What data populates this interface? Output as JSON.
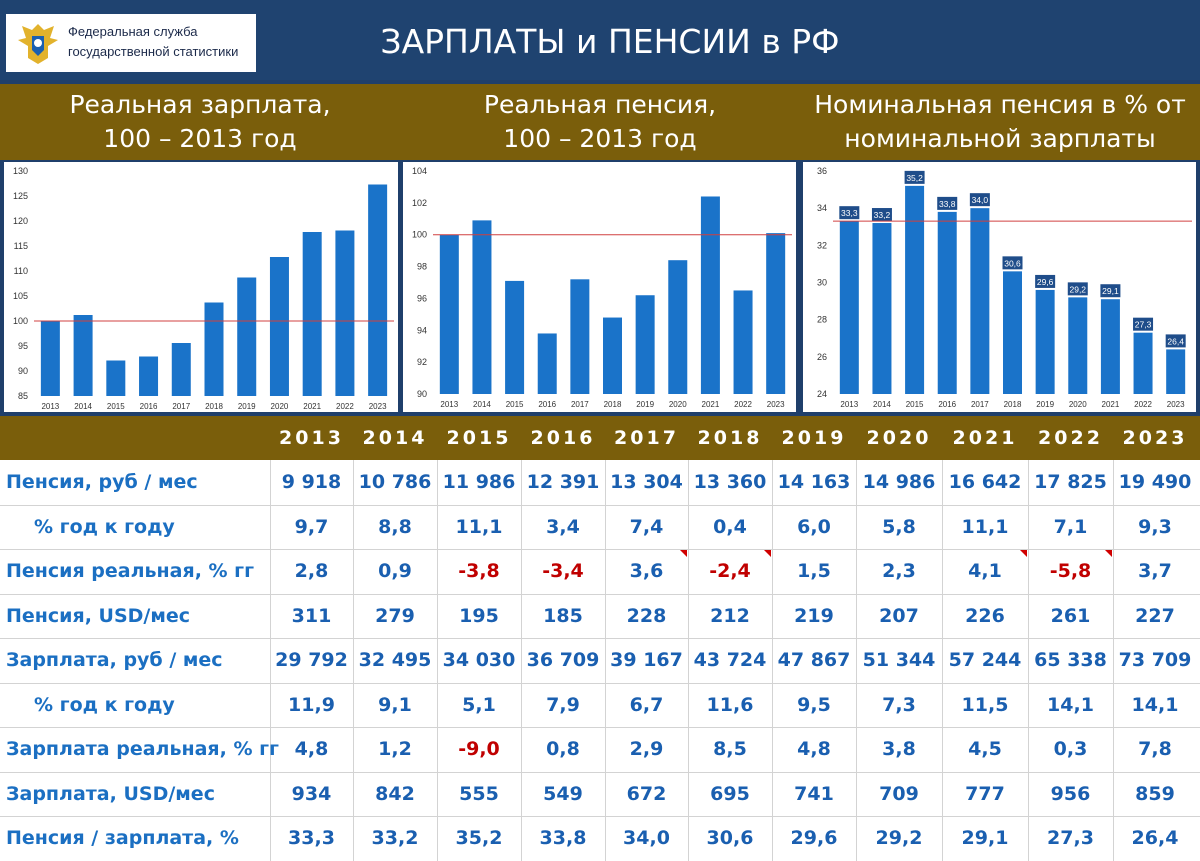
{
  "header": {
    "logo_line1": "Федеральная служба",
    "logo_line2": "государственной статистики",
    "title": "ЗАРПЛАТЫ и ПЕНСИИ в РФ"
  },
  "colors": {
    "bar": "#1a73c9",
    "header_bg": "#1f4370",
    "band_bg": "#7a5e0b",
    "negative": "#c00000",
    "row_text": "#1b6fc2"
  },
  "panel_titles": [
    {
      "line1": "Реальная зарплата,",
      "line2": "100 – 2013 год"
    },
    {
      "line1": "Реальная пенсия,",
      "line2": "100 – 2013 год"
    },
    {
      "line1": "Номинальная пенсия в % от",
      "line2": "номинальной зарплаты"
    }
  ],
  "chart_data": [
    {
      "type": "bar",
      "categories": [
        "2013",
        "2014",
        "2015",
        "2016",
        "2017",
        "2018",
        "2019",
        "2020",
        "2021",
        "2022",
        "2023"
      ],
      "values": [
        100,
        101.2,
        92.1,
        92.9,
        95.6,
        103.7,
        108.7,
        112.8,
        117.8,
        118.1,
        127.3
      ],
      "yticks": [
        85,
        90,
        95,
        100,
        105,
        110,
        115,
        120,
        125,
        130
      ],
      "ylim": [
        85,
        130
      ],
      "reference": 100,
      "grid": false
    },
    {
      "type": "bar",
      "categories": [
        "2013",
        "2014",
        "2015",
        "2016",
        "2017",
        "2018",
        "2019",
        "2020",
        "2021",
        "2022",
        "2023"
      ],
      "values": [
        100,
        100.9,
        97.1,
        93.8,
        97.2,
        94.8,
        96.2,
        98.4,
        102.4,
        96.5,
        100.1
      ],
      "yticks": [
        90,
        92,
        94,
        96,
        98,
        100,
        102,
        104
      ],
      "ylim": [
        90,
        104
      ],
      "reference": 100,
      "grid": false
    },
    {
      "type": "bar",
      "categories": [
        "2013",
        "2014",
        "2015",
        "2016",
        "2017",
        "2018",
        "2019",
        "2020",
        "2021",
        "2022",
        "2023"
      ],
      "values": [
        33.3,
        33.2,
        35.2,
        33.8,
        34.0,
        30.6,
        29.6,
        29.2,
        29.1,
        27.3,
        26.4
      ],
      "labels": [
        "33,3",
        "33,2",
        "35,2",
        "33,8",
        "34,0",
        "30,6",
        "29,6",
        "29,2",
        "29,1",
        "27,3",
        "26,4"
      ],
      "yticks": [
        24,
        26,
        28,
        30,
        32,
        34,
        36
      ],
      "ylim": [
        24,
        36
      ],
      "reference": 33.3,
      "grid": false
    }
  ],
  "table": {
    "years": [
      "2013",
      "2014",
      "2015",
      "2016",
      "2017",
      "2018",
      "2019",
      "2020",
      "2021",
      "2022",
      "2023"
    ],
    "rows": [
      {
        "label": "Пенсия, руб / мес",
        "values": [
          "9 918",
          "10 786",
          "11 986",
          "12 391",
          "13 304",
          "13 360",
          "14 163",
          "14 986",
          "16 642",
          "17 825",
          "19 490"
        ]
      },
      {
        "label": "% год к году",
        "values": [
          "9,7",
          "8,8",
          "11,1",
          "3,4",
          "7,4",
          "0,4",
          "6,0",
          "5,8",
          "11,1",
          "7,1",
          "9,3"
        ]
      },
      {
        "label": "Пенсия реальная, % гг",
        "values": [
          "2,8",
          "0,9",
          "-3,8",
          "-3,4",
          "3,6",
          "-2,4",
          "1,5",
          "2,3",
          "4,1",
          "-5,8",
          "3,7"
        ]
      },
      {
        "label": "Пенсия, USD/мес",
        "values": [
          "311",
          "279",
          "195",
          "185",
          "228",
          "212",
          "219",
          "207",
          "226",
          "261",
          "227"
        ]
      },
      {
        "label": "Зарплата, руб / мес",
        "values": [
          "29 792",
          "32 495",
          "34 030",
          "36 709",
          "39 167",
          "43 724",
          "47 867",
          "51 344",
          "57 244",
          "65 338",
          "73 709"
        ]
      },
      {
        "label": "% год к году",
        "values": [
          "11,9",
          "9,1",
          "5,1",
          "7,9",
          "6,7",
          "11,6",
          "9,5",
          "7,3",
          "11,5",
          "14,1",
          "14,1"
        ]
      },
      {
        "label": "Зарплата реальная, % гг",
        "values": [
          "4,8",
          "1,2",
          "-9,0",
          "0,8",
          "2,9",
          "8,5",
          "4,8",
          "3,8",
          "4,5",
          "0,3",
          "7,8"
        ]
      },
      {
        "label": "Зарплата, USD/мес",
        "values": [
          "934",
          "842",
          "555",
          "549",
          "672",
          "695",
          "741",
          "709",
          "777",
          "956",
          "859"
        ]
      },
      {
        "label": "Пенсия / зарплата, %",
        "values": [
          "33,3",
          "33,2",
          "35,2",
          "33,8",
          "34,0",
          "30,6",
          "29,6",
          "29,2",
          "29,1",
          "27,3",
          "26,4"
        ]
      }
    ]
  }
}
